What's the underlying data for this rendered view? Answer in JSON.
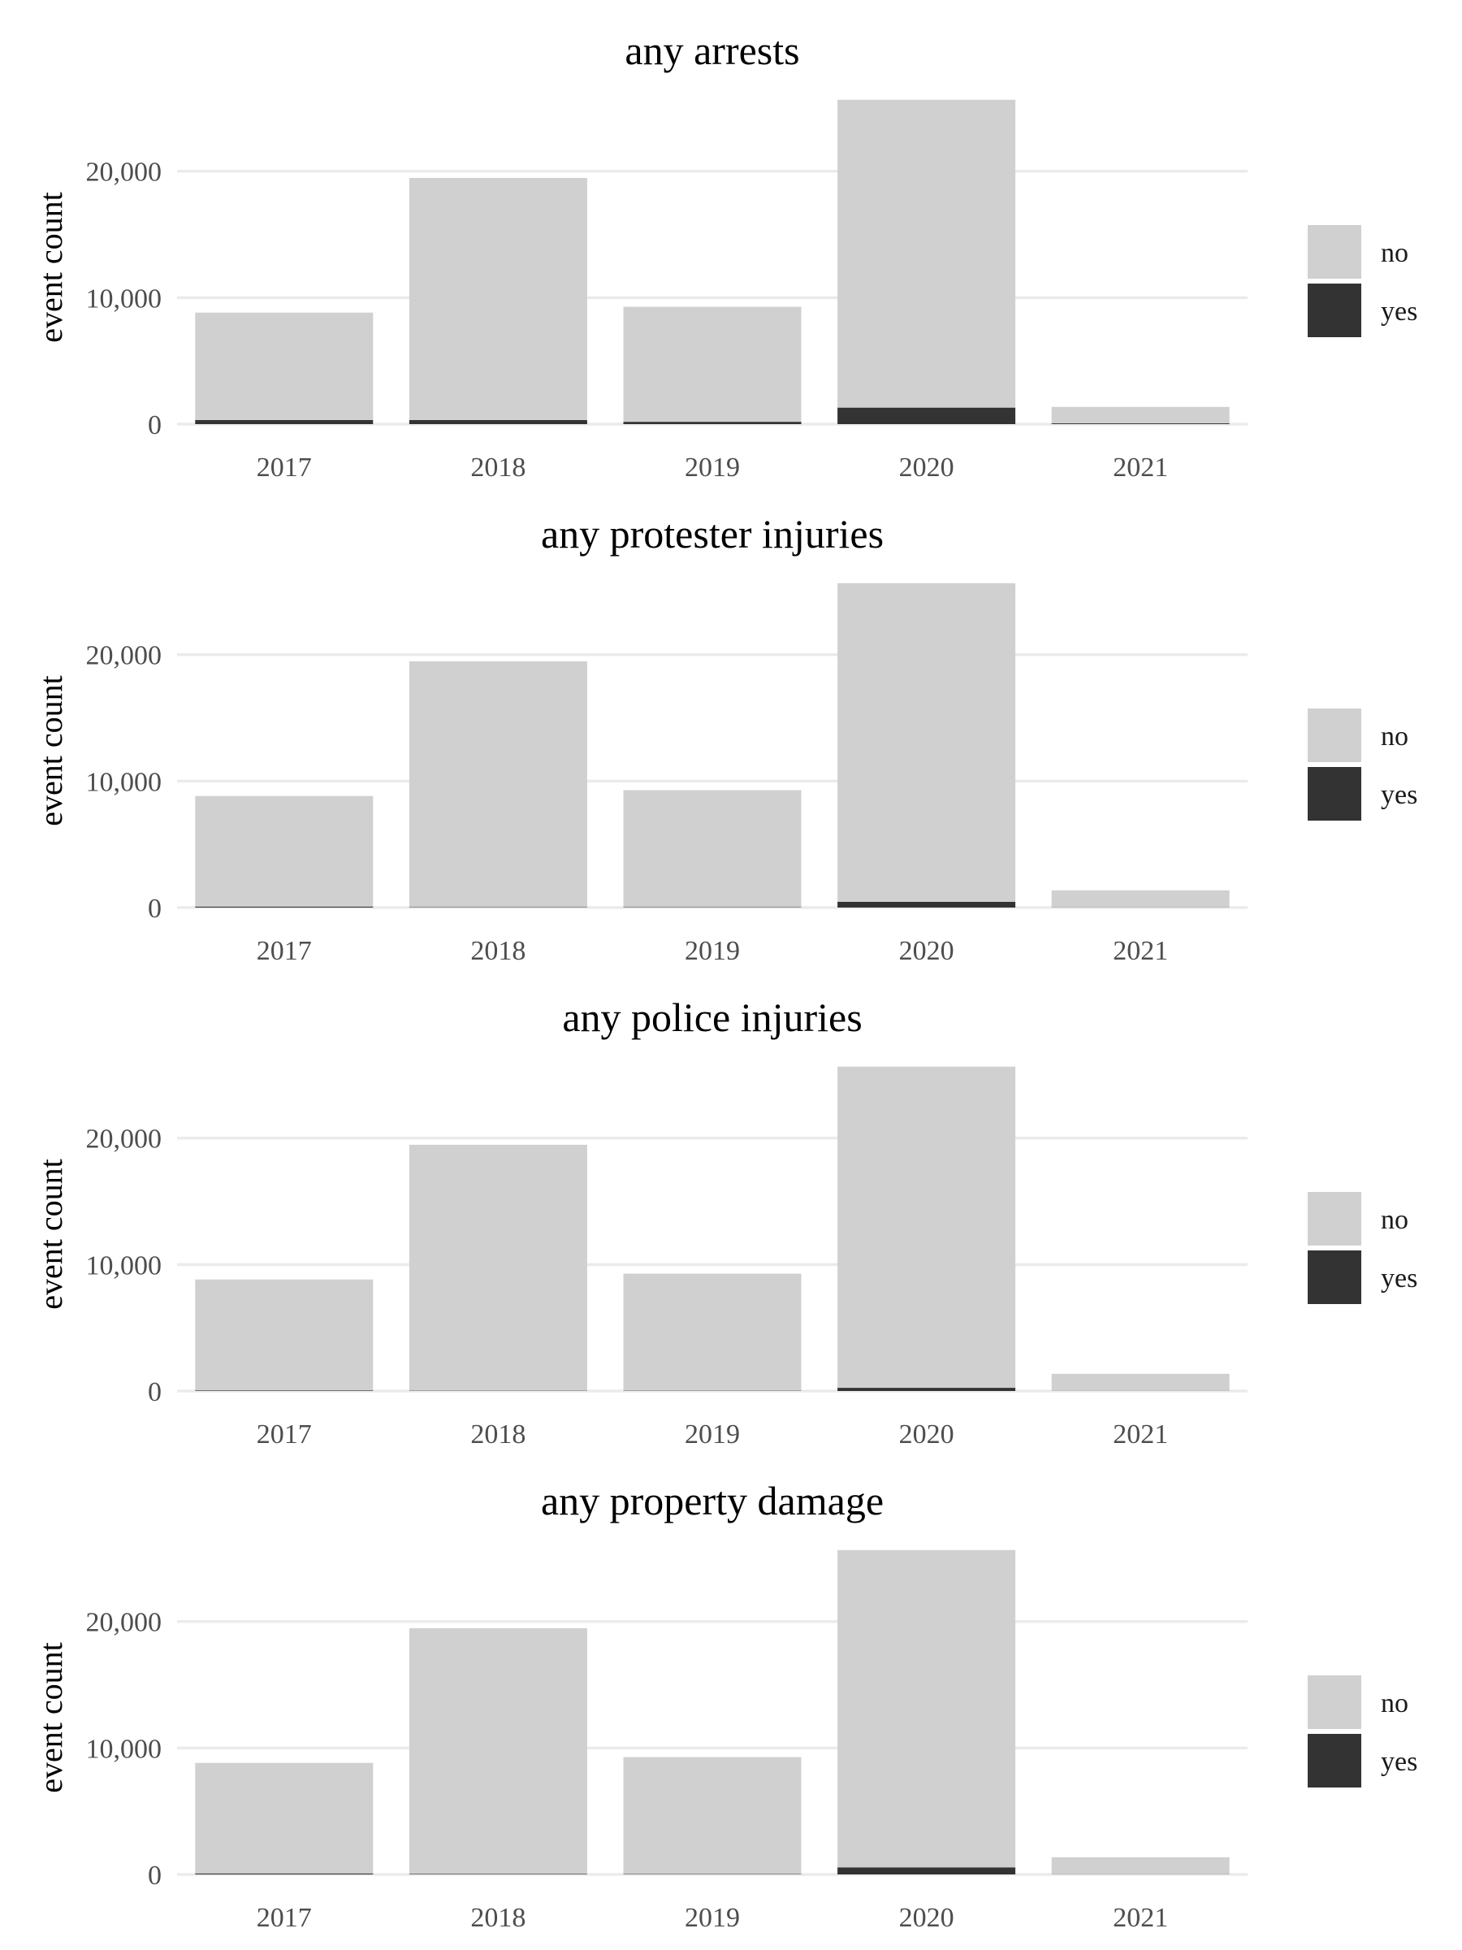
{
  "chart_data": [
    {
      "type": "bar",
      "stacked": true,
      "title": "any arrests",
      "ylabel": "event count",
      "xlabel": "",
      "categories": [
        "2017",
        "2018",
        "2019",
        "2020",
        "2021"
      ],
      "series": [
        {
          "name": "no",
          "values": [
            8500,
            19150,
            9100,
            24350,
            1300
          ]
        },
        {
          "name": "yes",
          "values": [
            320,
            320,
            180,
            1300,
            60
          ]
        }
      ],
      "ylim": [
        0,
        25700
      ],
      "yticks": [
        0,
        10000,
        20000
      ],
      "ytick_labels": [
        "0",
        "10,000",
        "20,000"
      ],
      "grid": true,
      "legend_position": "right"
    },
    {
      "type": "bar",
      "stacked": true,
      "title": "any protester injuries",
      "ylabel": "event count",
      "xlabel": "",
      "categories": [
        "2017",
        "2018",
        "2019",
        "2020",
        "2021"
      ],
      "series": [
        {
          "name": "no",
          "values": [
            8750,
            19440,
            9250,
            25200,
            1350
          ]
        },
        {
          "name": "yes",
          "values": [
            70,
            30,
            30,
            450,
            10
          ]
        }
      ],
      "ylim": [
        0,
        25700
      ],
      "yticks": [
        0,
        10000,
        20000
      ],
      "ytick_labels": [
        "0",
        "10,000",
        "20,000"
      ],
      "grid": true,
      "legend_position": "right"
    },
    {
      "type": "bar",
      "stacked": true,
      "title": "any police injuries",
      "ylabel": "event count",
      "xlabel": "",
      "categories": [
        "2017",
        "2018",
        "2019",
        "2020",
        "2021"
      ],
      "series": [
        {
          "name": "no",
          "values": [
            8780,
            19450,
            9260,
            25400,
            1355
          ]
        },
        {
          "name": "yes",
          "values": [
            40,
            20,
            20,
            250,
            5
          ]
        }
      ],
      "ylim": [
        0,
        25700
      ],
      "yticks": [
        0,
        10000,
        20000
      ],
      "ytick_labels": [
        "0",
        "10,000",
        "20,000"
      ],
      "grid": true,
      "legend_position": "right"
    },
    {
      "type": "bar",
      "stacked": true,
      "title": "any property damage",
      "ylabel": "event count",
      "xlabel": "",
      "categories": [
        "2017",
        "2018",
        "2019",
        "2020",
        "2021"
      ],
      "series": [
        {
          "name": "no",
          "values": [
            8750,
            19430,
            9250,
            25100,
            1350
          ]
        },
        {
          "name": "yes",
          "values": [
            70,
            40,
            30,
            550,
            10
          ]
        }
      ],
      "ylim": [
        0,
        25700
      ],
      "yticks": [
        0,
        10000,
        20000
      ],
      "ytick_labels": [
        "0",
        "10,000",
        "20,000"
      ],
      "grid": true,
      "legend_position": "right"
    }
  ],
  "colors": {
    "no": "#d0d0d0",
    "yes": "#333333",
    "gridline": "#ebebeb",
    "tick_text": "#4d4d4d"
  }
}
